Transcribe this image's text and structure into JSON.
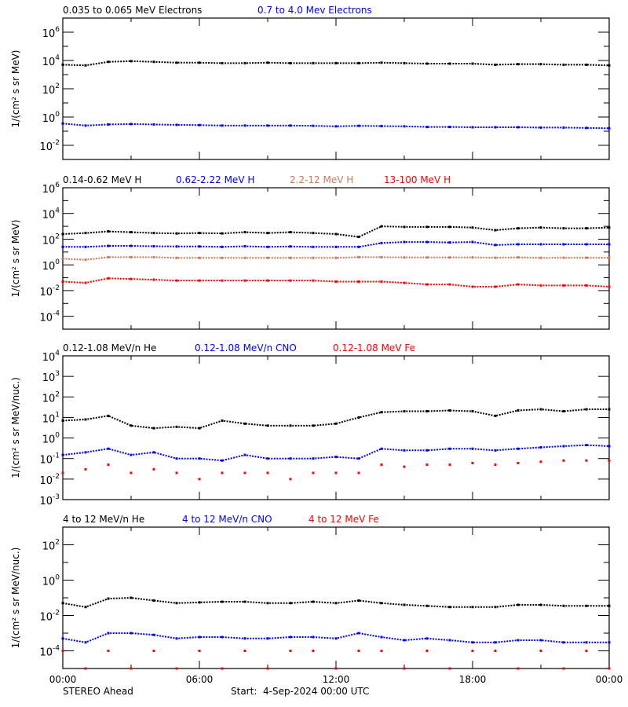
{
  "footer": {
    "left": "STEREO Ahead",
    "right": "Start:  4-Sep-2024 00:00 UTC"
  },
  "chart_data": [
    {
      "type": "scatter",
      "ylabel": "1/(cm² s sr MeV)",
      "ylim": [
        0.001,
        10000000
      ],
      "yscale": "log",
      "ytick_exponents": [
        -2,
        0,
        2,
        4,
        6
      ],
      "xlim_hours": [
        0,
        24
      ],
      "xtick_labels": [
        "00:00",
        "06:00",
        "12:00",
        "18:00",
        "00:00"
      ],
      "x_hours": [
        0,
        1,
        2,
        3,
        4,
        5,
        6,
        7,
        8,
        9,
        10,
        11,
        12,
        13,
        14,
        15,
        16,
        17,
        18,
        19,
        20,
        21,
        22,
        23,
        24
      ],
      "series": [
        {
          "name": "0.035 to 0.065 MeV Electrons",
          "color": "#000000",
          "values": [
            5000,
            4500,
            8000,
            9000,
            8000,
            7000,
            7000,
            6500,
            6500,
            7000,
            6500,
            6500,
            6500,
            6500,
            7000,
            6500,
            6000,
            6000,
            6000,
            5000,
            5500,
            5500,
            5000,
            5000,
            4500
          ]
        },
        {
          "name": "0.7 to 4.0 Mev Electrons",
          "color": "#0000ff",
          "values": [
            0.35,
            0.25,
            0.3,
            0.32,
            0.3,
            0.28,
            0.27,
            0.25,
            0.25,
            0.25,
            0.25,
            0.24,
            0.22,
            0.24,
            0.23,
            0.22,
            0.2,
            0.2,
            0.19,
            0.19,
            0.19,
            0.18,
            0.18,
            0.17,
            0.16
          ]
        }
      ]
    },
    {
      "type": "scatter",
      "ylabel": "1/(cm² s sr MeV)",
      "ylim": [
        1e-05,
        1000000
      ],
      "yscale": "log",
      "ytick_exponents": [
        -4,
        -2,
        0,
        2,
        4,
        6
      ],
      "xlim_hours": [
        0,
        24
      ],
      "xtick_labels": [
        "00:00",
        "06:00",
        "12:00",
        "18:00",
        "00:00"
      ],
      "x_hours": [
        0,
        1,
        2,
        3,
        4,
        5,
        6,
        7,
        8,
        9,
        10,
        11,
        12,
        13,
        14,
        15,
        16,
        17,
        18,
        19,
        20,
        21,
        22,
        23,
        24
      ],
      "series": [
        {
          "name": "0.14-0.62 MeV H",
          "color": "#000000",
          "values": [
            250,
            300,
            400,
            350,
            300,
            280,
            300,
            280,
            350,
            300,
            350,
            300,
            250,
            150,
            1000,
            900,
            900,
            900,
            800,
            500,
            700,
            800,
            700,
            700,
            800
          ]
        },
        {
          "name": "0.62-2.22 MeV H",
          "color": "#0000ff",
          "values": [
            25,
            25,
            30,
            30,
            28,
            27,
            27,
            25,
            28,
            25,
            27,
            25,
            25,
            25,
            50,
            60,
            60,
            55,
            60,
            35,
            40,
            40,
            40,
            40,
            40
          ]
        },
        {
          "name": "2.2-12 MeV H",
          "color": "#c8785a",
          "values": [
            3,
            2.5,
            4,
            4,
            4,
            3.5,
            3.5,
            3.5,
            3.5,
            3.5,
            3.5,
            3.5,
            3.5,
            4,
            4,
            3.8,
            3.8,
            3.8,
            3.8,
            3.6,
            3.8,
            3.5,
            3.6,
            3.6,
            3.6
          ]
        },
        {
          "name": "13-100 MeV H",
          "color": "#ff0000",
          "values": [
            0.05,
            0.04,
            0.09,
            0.08,
            0.07,
            0.06,
            0.06,
            0.06,
            0.06,
            0.06,
            0.06,
            0.06,
            0.05,
            0.05,
            0.05,
            0.04,
            0.03,
            0.03,
            0.02,
            0.02,
            0.03,
            0.025,
            0.025,
            0.025,
            0.02
          ]
        }
      ]
    },
    {
      "type": "scatter",
      "ylabel": "1/(cm² s sr MeV/nuc.)",
      "ylim": [
        0.001,
        10000
      ],
      "yscale": "log",
      "ytick_exponents": [
        -3,
        -2,
        -1,
        0,
        1,
        2,
        3,
        4
      ],
      "xlim_hours": [
        0,
        24
      ],
      "xtick_labels": [
        "00:00",
        "06:00",
        "12:00",
        "18:00",
        "00:00"
      ],
      "x_hours": [
        0,
        1,
        2,
        3,
        4,
        5,
        6,
        7,
        8,
        9,
        10,
        11,
        12,
        13,
        14,
        15,
        16,
        17,
        18,
        19,
        20,
        21,
        22,
        23,
        24
      ],
      "series": [
        {
          "name": "0.12-1.08 MeV/n He",
          "color": "#000000",
          "values": [
            7,
            8,
            12,
            4,
            3,
            3.5,
            3,
            7,
            5,
            4,
            4,
            4,
            5,
            10,
            18,
            20,
            20,
            22,
            20,
            12,
            22,
            25,
            20,
            25,
            25
          ]
        },
        {
          "name": "0.12-1.08 MeV/n CNO",
          "color": "#0000ff",
          "values": [
            0.15,
            0.2,
            0.3,
            0.15,
            0.2,
            0.1,
            0.1,
            0.08,
            0.15,
            0.1,
            0.1,
            0.1,
            0.12,
            0.1,
            0.3,
            0.25,
            0.25,
            0.3,
            0.3,
            0.25,
            0.3,
            0.35,
            0.4,
            0.45,
            0.4
          ]
        },
        {
          "name": "0.12-1.08 MeV Fe",
          "color": "#ff0000",
          "values": [
            0.02,
            0.03,
            0.05,
            0.02,
            0.03,
            0.02,
            0.01,
            0.02,
            0.02,
            0.02,
            0.01,
            0.02,
            0.02,
            0.02,
            0.05,
            0.04,
            0.05,
            0.05,
            0.06,
            0.05,
            0.06,
            0.07,
            0.08,
            0.08,
            0.08
          ]
        }
      ]
    },
    {
      "type": "scatter",
      "ylabel": "1/(cm² s sr MeV/nuc.)",
      "ylim": [
        1e-05,
        1000
      ],
      "yscale": "log",
      "ytick_exponents": [
        -4,
        -2,
        0,
        2
      ],
      "xlim_hours": [
        0,
        24
      ],
      "xtick_labels": [
        "00:00",
        "06:00",
        "12:00",
        "18:00",
        "00:00"
      ],
      "x_hours": [
        0,
        1,
        2,
        3,
        4,
        5,
        6,
        7,
        8,
        9,
        10,
        11,
        12,
        13,
        14,
        15,
        16,
        17,
        18,
        19,
        20,
        21,
        22,
        23,
        24
      ],
      "series": [
        {
          "name": "4 to 12 MeV/n He",
          "color": "#000000",
          "values": [
            0.05,
            0.03,
            0.09,
            0.1,
            0.07,
            0.05,
            0.055,
            0.06,
            0.06,
            0.05,
            0.05,
            0.06,
            0.05,
            0.07,
            0.05,
            0.04,
            0.035,
            0.03,
            0.03,
            0.03,
            0.04,
            0.04,
            0.035,
            0.035,
            0.035
          ]
        },
        {
          "name": "4 to 12 MeV/n CNO",
          "color": "#0000ff",
          "values": [
            0.0005,
            0.0003,
            0.001,
            0.001,
            0.0008,
            0.0005,
            0.0006,
            0.0006,
            0.0005,
            0.0005,
            0.0006,
            0.0006,
            0.0005,
            0.001,
            0.0006,
            0.0004,
            0.0005,
            0.0004,
            0.0003,
            0.0003,
            0.0004,
            0.0004,
            0.0003,
            0.0003,
            0.0003
          ]
        },
        {
          "name": "4 to 12 MeV Fe",
          "color": "#ff0000",
          "values": [
            0.0001,
            1e-05,
            0.0001,
            1e-05,
            0.0001,
            1e-05,
            0.0001,
            1e-05,
            0.0001,
            1e-05,
            0.0001,
            0.0001,
            1e-05,
            0.0001,
            0.0001,
            1e-05,
            0.0001,
            1e-05,
            0.0001,
            0.0001,
            1e-05,
            0.0001,
            1e-05,
            0.0001,
            1e-05
          ]
        }
      ]
    }
  ]
}
